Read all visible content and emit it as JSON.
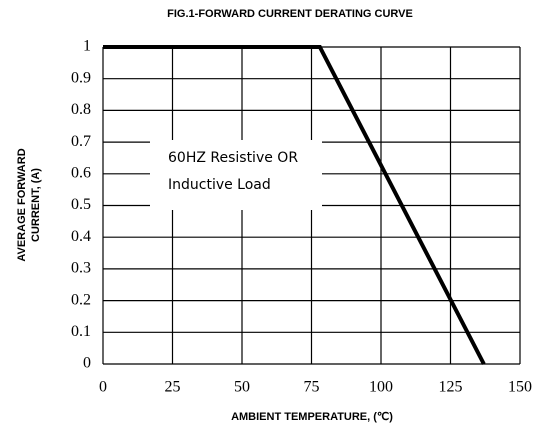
{
  "chart_data": {
    "type": "line",
    "title": "FIG.1-FORWARD CURRENT DERATING CURVE",
    "xlabel": "AMBIENT TEMPERATURE, (℃)",
    "ylabel": [
      "AVERAGE FORWARD",
      "CURRENT, (A)"
    ],
    "annotation": [
      "60HZ Resistive OR",
      "Inductive Load"
    ],
    "x": [
      0,
      78,
      137
    ],
    "series": [
      {
        "name": "",
        "color": "#000000",
        "values": [
          1,
          1,
          0
        ]
      }
    ],
    "xlim": [
      0,
      150
    ],
    "xticks": [
      0,
      25,
      50,
      75,
      100,
      125,
      150
    ],
    "ylim": [
      0,
      1
    ],
    "yticks": [
      0,
      0.1,
      0.2,
      0.3,
      0.4,
      0.5,
      0.6,
      0.7,
      0.8,
      0.9,
      1
    ],
    "grid": true
  }
}
